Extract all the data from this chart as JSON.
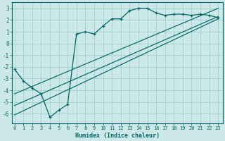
{
  "xlabel": "Humidex (Indice chaleur)",
  "bg_color": "#cce8e8",
  "grid_color": "#99cccc",
  "line_color": "#006666",
  "x_data": [
    0,
    1,
    2,
    3,
    4,
    5,
    6,
    7,
    8,
    9,
    10,
    11,
    12,
    13,
    14,
    15,
    16,
    17,
    18,
    19,
    20,
    21,
    22,
    23
  ],
  "humidex_curve": [
    -2.2,
    -3.2,
    -3.8,
    -4.3,
    -6.3,
    -5.7,
    -5.2,
    0.8,
    1.0,
    0.8,
    1.5,
    2.1,
    2.1,
    2.8,
    3.0,
    3.0,
    2.6,
    2.4,
    2.5,
    2.5,
    2.4,
    2.5,
    2.4,
    2.2
  ],
  "straight_lines": [
    {
      "x0": 0,
      "y0": -6.1,
      "x1": 23,
      "y1": 2.1
    },
    {
      "x0": 0,
      "y0": -5.3,
      "x1": 23,
      "y1": 2.3
    },
    {
      "x0": 0,
      "y0": -4.3,
      "x1": 23,
      "y1": 3.0
    }
  ],
  "ylim": [
    -6.8,
    3.5
  ],
  "xlim": [
    -0.3,
    23.5
  ],
  "yticks": [
    3,
    2,
    1,
    0,
    -1,
    -2,
    -3,
    -4,
    -5,
    -6
  ],
  "xticks": [
    0,
    1,
    2,
    3,
    4,
    5,
    6,
    7,
    8,
    9,
    10,
    11,
    12,
    13,
    14,
    15,
    16,
    17,
    18,
    19,
    20,
    21,
    22,
    23
  ]
}
